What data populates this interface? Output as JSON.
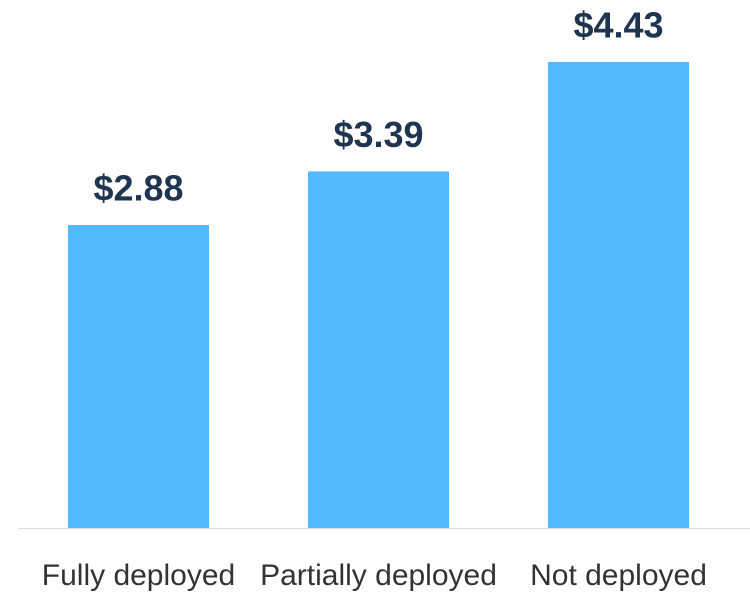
{
  "chart_data": {
    "type": "bar",
    "categories": [
      "Fully deployed",
      "Partially deployed",
      "Not deployed"
    ],
    "values": [
      2.88,
      3.39,
      4.43
    ],
    "value_labels": [
      "$2.88",
      "$3.39",
      "$4.43"
    ],
    "color": "#52b9ff"
  }
}
